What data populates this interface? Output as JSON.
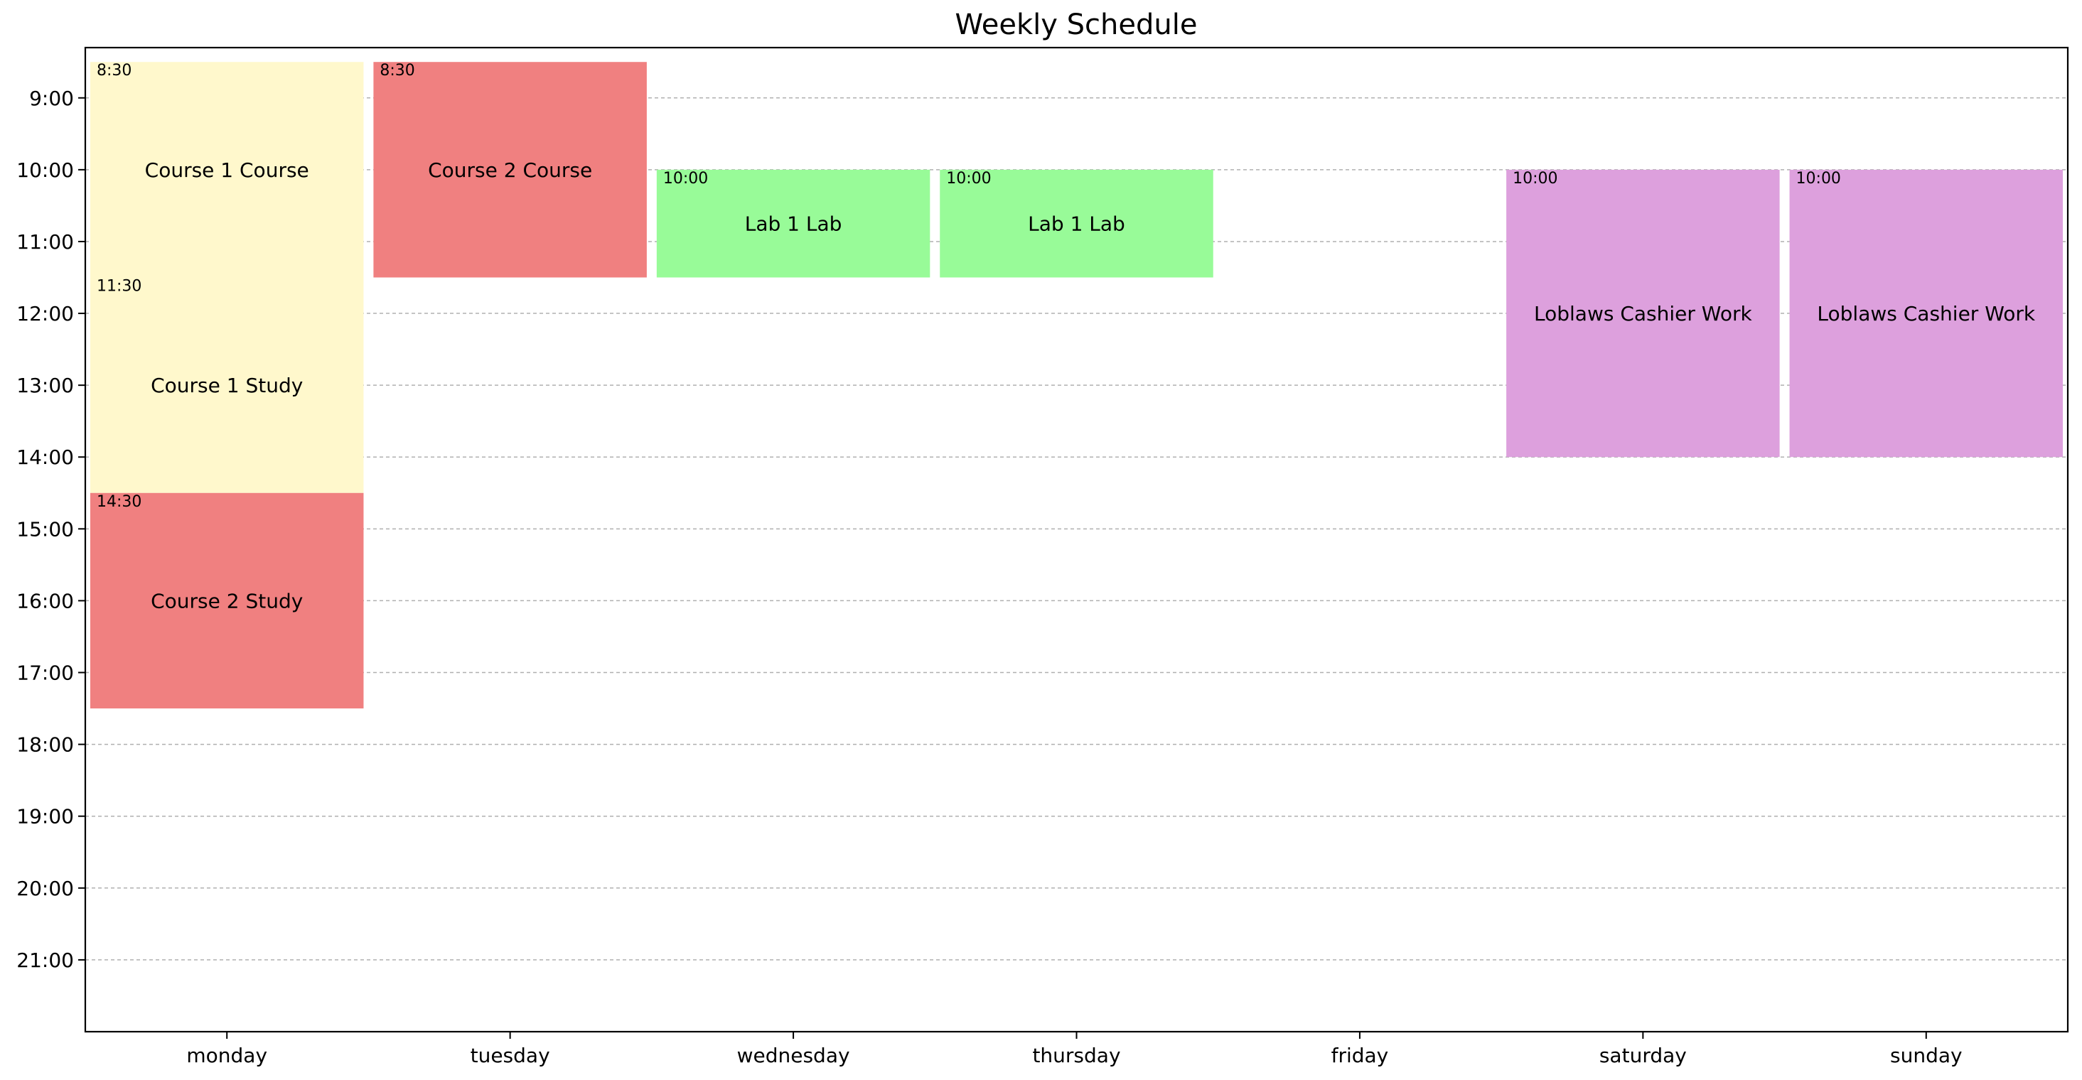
{
  "chart_data": {
    "type": "table",
    "title": "Weekly Schedule",
    "xlabel": "",
    "ylabel": "",
    "categories": [
      "monday",
      "tuesday",
      "wednesday",
      "thursday",
      "friday",
      "saturday",
      "sunday"
    ],
    "y_ticks": [
      "9:00",
      "10:00",
      "11:00",
      "12:00",
      "13:00",
      "14:00",
      "15:00",
      "16:00",
      "17:00",
      "18:00",
      "19:00",
      "20:00",
      "21:00"
    ],
    "y_tick_values": [
      9,
      10,
      11,
      12,
      13,
      14,
      15,
      16,
      17,
      18,
      19,
      20,
      21
    ],
    "ylim": [
      22,
      8.3
    ],
    "grid": "horizontal dashed",
    "events": [
      {
        "day": "monday",
        "start": 8.5,
        "end": 11.5,
        "label": "Course 1 Course",
        "start_label": "8:30",
        "color": "#fff8cc"
      },
      {
        "day": "monday",
        "start": 11.5,
        "end": 14.5,
        "label": "Course 1 Study",
        "start_label": "11:30",
        "color": "#fff8cc"
      },
      {
        "day": "monday",
        "start": 14.5,
        "end": 17.5,
        "label": "Course 2 Study",
        "start_label": "14:30",
        "color": "#f08080"
      },
      {
        "day": "tuesday",
        "start": 8.5,
        "end": 11.5,
        "label": "Course 2 Course",
        "start_label": "8:30",
        "color": "#f08080"
      },
      {
        "day": "wednesday",
        "start": 10,
        "end": 11.5,
        "label": "Lab 1 Lab",
        "start_label": "10:00",
        "color": "#98fb98"
      },
      {
        "day": "thursday",
        "start": 10,
        "end": 11.5,
        "label": "Lab 1 Lab",
        "start_label": "10:00",
        "color": "#98fb98"
      },
      {
        "day": "saturday",
        "start": 10,
        "end": 14,
        "label": "Loblaws Cashier Work",
        "start_label": "10:00",
        "color": "#dda0dd"
      },
      {
        "day": "sunday",
        "start": 10,
        "end": 14,
        "label": "Loblaws Cashier Work",
        "start_label": "10:00",
        "color": "#dda0dd"
      }
    ]
  }
}
